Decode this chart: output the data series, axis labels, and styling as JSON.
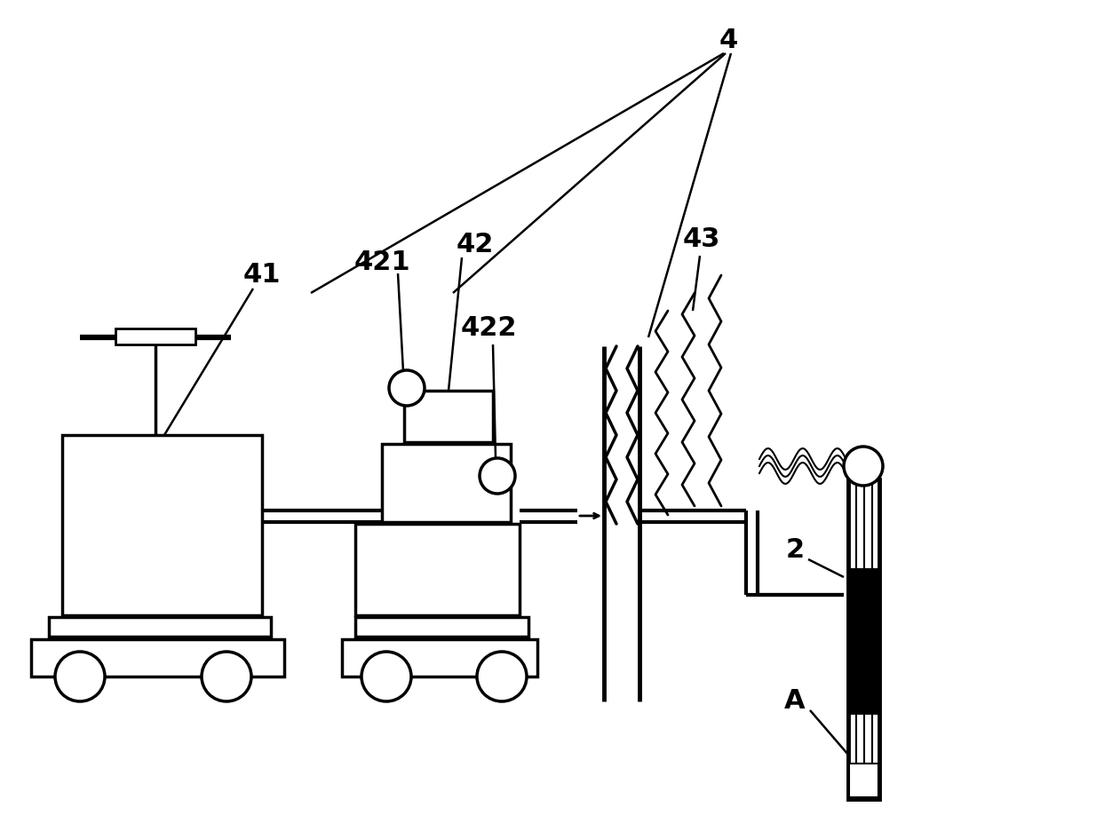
{
  "bg_color": "#ffffff",
  "lc": "#000000",
  "lw": 2.5,
  "fig_width": 12.34,
  "fig_height": 9.36,
  "label_fontsize": 22
}
